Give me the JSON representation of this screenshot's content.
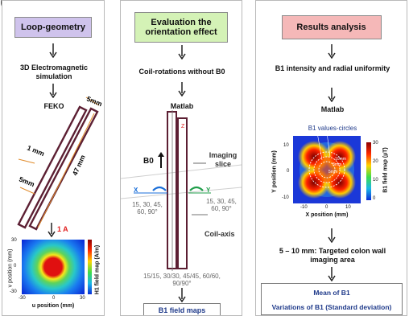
{
  "partial_title": "g",
  "panel1": {
    "header": "Loop-geometry",
    "step1": "3D Electromagnetic simulation",
    "step2": "FEKO",
    "dims": {
      "top": "5mm",
      "mid": "1 mm",
      "left": "5mm",
      "long": "47 mm"
    },
    "current": "1 A",
    "map": {
      "ylabel": "v position (mm)",
      "xlabel": "u position (mm)",
      "cbar_label": "H1 field map (A/m)",
      "yticks": [
        "30",
        "0",
        "-30"
      ],
      "xticks": [
        "-30",
        "0",
        "30"
      ]
    }
  },
  "panel2": {
    "header": "Evaluation the orientation effect",
    "step1": "Coil-rotations without B0",
    "step2": "Matlab",
    "b0": "B0",
    "imaging": "Imaging slice",
    "x_axis": "X",
    "y_axis": "Y",
    "angles_left": "15, 30, 45, 60, 90°",
    "angles_right": "15, 30, 45, 60, 90°",
    "coil_axis": "Coil-axis",
    "z_label": "Z",
    "combos": "15/15, 30/30, 45/45, 60/60, 90/90°",
    "result": "B1 field maps"
  },
  "panel3": {
    "header": "Results analysis",
    "step1": "B1 intensity and radial uniformity",
    "step2": "Matlab",
    "map": {
      "title": "B1 values-circles",
      "ylabel": "Y position (mm)",
      "xlabel": "X position (mm)",
      "cbar_label": "B1 field map (µT)",
      "cbar_ticks": [
        "30",
        "20",
        "10",
        "0"
      ],
      "yticks": [
        "10",
        "0",
        "-10"
      ],
      "xticks": [
        "-10",
        "0",
        "10"
      ],
      "circle_labels": [
        "10mm",
        "8mm",
        "5mm"
      ]
    },
    "step3": "5 – 10 mm: Targeted colon wall imaging area",
    "result1": "Mean of B1",
    "result2": "Variations of B1 (Standard deviation)"
  },
  "colors": {
    "purple_header": "#cfc3ec",
    "green_header": "#d4f2b6",
    "pink_header": "#f5b8b8",
    "coil": "#5c1f33",
    "dim": "#e08a2a",
    "red_label": "#e02020",
    "blue_text": "#1f3a8a"
  }
}
